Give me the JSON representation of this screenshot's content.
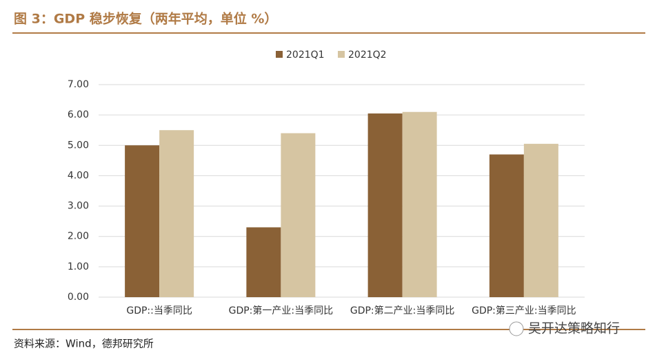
{
  "chart_data": {
    "type": "bar",
    "title": "图 3：GDP 稳步恢复（两年平均，单位 %）",
    "categories": [
      "GDP::当季同比",
      "GDP:第一产业:当季同比",
      "GDP:第二产业:当季同比",
      "GDP:第三产业:当季同比"
    ],
    "series": [
      {
        "name": "2021Q1",
        "color": "#8a6136",
        "values": [
          5.0,
          2.3,
          6.05,
          4.7
        ]
      },
      {
        "name": "2021Q2",
        "color": "#d6c5a2",
        "values": [
          5.5,
          5.4,
          6.1,
          5.05
        ]
      }
    ],
    "ylim": [
      0,
      7
    ],
    "yticks": [
      {
        "value": 0,
        "label": "0.00"
      },
      {
        "value": 1,
        "label": "1.00"
      },
      {
        "value": 2,
        "label": "2.00"
      },
      {
        "value": 3,
        "label": "3.00"
      },
      {
        "value": 4,
        "label": "4.00"
      },
      {
        "value": 5,
        "label": "5.00"
      },
      {
        "value": 6,
        "label": "6.00"
      },
      {
        "value": 7,
        "label": "7.00"
      }
    ],
    "grid": true,
    "legend": "top",
    "source": "资料来源：Wind，德邦研究所",
    "watermark": "吴开达策略知行"
  }
}
